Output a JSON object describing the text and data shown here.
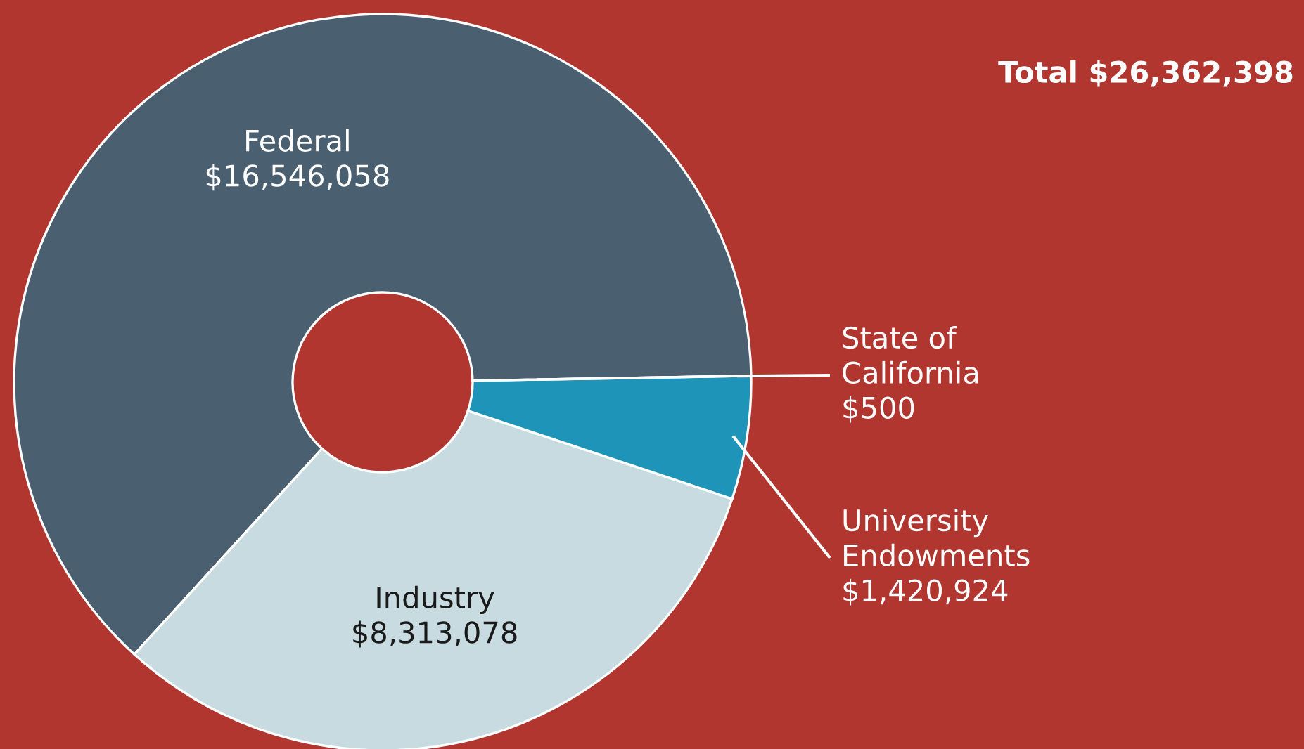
{
  "chart_data": {
    "type": "donut",
    "categories": [
      "Federal",
      "Industry",
      "University Endowments",
      "State of California"
    ],
    "values": [
      16546058,
      8313078,
      1420924,
      500
    ],
    "value_labels": [
      "$16,546,058",
      "$8,313,078",
      "$1,420,924",
      "$500"
    ],
    "colors": [
      "#4a5f70",
      "#c8dbe1",
      "#1e94b8",
      "#1e2a33"
    ],
    "annotations": [
      "Total $26,362,398"
    ],
    "legend": false
  }
}
